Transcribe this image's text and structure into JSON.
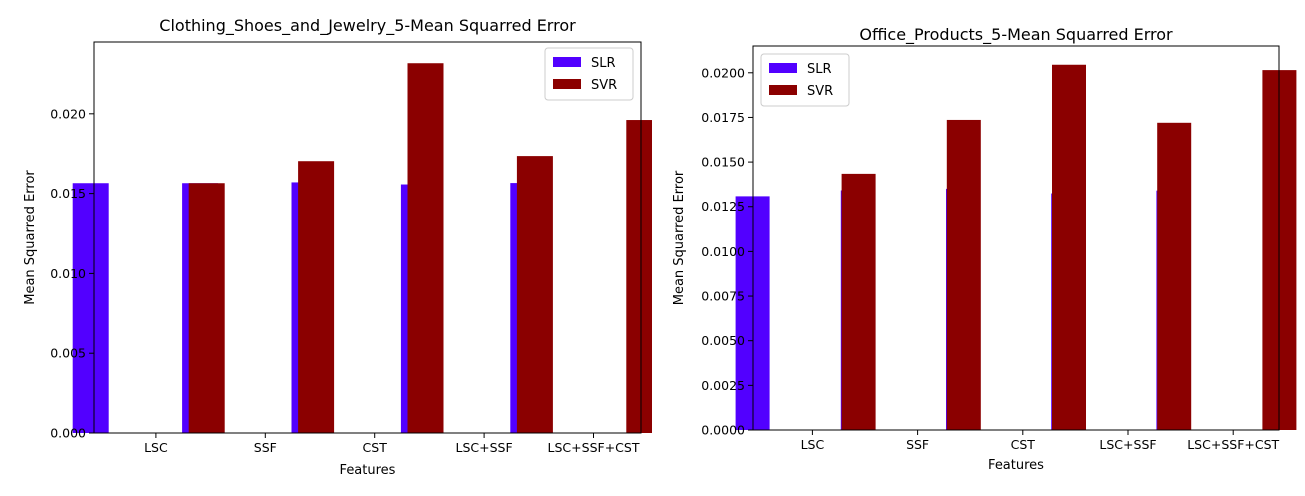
{
  "chart_data": [
    {
      "type": "bar",
      "title": "Clothing_Shoes_and_Jewelry_5-Mean Squarred Error",
      "xlabel": "Features",
      "ylabel": "Mean Squarred Error",
      "categories": [
        "LSC",
        "SSF",
        "CST",
        "LSC+SSF",
        "LSC+SSF+CST"
      ],
      "series": [
        {
          "name": "SLR",
          "values": [
            0.01565,
            0.01565,
            0.0157,
            0.01557,
            0.01566
          ],
          "color": "#5200ff"
        },
        {
          "name": "SVR",
          "values": [
            0.01565,
            0.01703,
            0.02317,
            0.01735,
            0.01961
          ],
          "color": "#8b0000"
        }
      ],
      "ylim": [
        0,
        0.0245
      ],
      "yticks": [
        0.0,
        0.005,
        0.01,
        0.015,
        0.02
      ],
      "ytick_labels": [
        "0.000",
        "0.005",
        "0.010",
        "0.015",
        "0.020"
      ],
      "legend_position": "top-right",
      "grid": false
    },
    {
      "type": "bar",
      "title": "Office_Products_5-Mean Squarred Error",
      "xlabel": "Features",
      "ylabel": "Mean Squarred Error",
      "categories": [
        "LSC",
        "SSF",
        "CST",
        "LSC+SSF",
        "LSC+SSF+CST"
      ],
      "series": [
        {
          "name": "SLR",
          "values": [
            0.01308,
            0.01341,
            0.0135,
            0.01324,
            0.0134
          ],
          "color": "#5200ff"
        },
        {
          "name": "SVR",
          "values": [
            0.01434,
            0.01736,
            0.02045,
            0.0172,
            0.02015
          ],
          "color": "#8b0000"
        }
      ],
      "ylim": [
        0,
        0.0215
      ],
      "yticks": [
        0.0,
        0.0025,
        0.005,
        0.0075,
        0.01,
        0.0125,
        0.015,
        0.0175,
        0.02
      ],
      "ytick_labels": [
        "0.0000",
        "0.0025",
        "0.0050",
        "0.0075",
        "0.0100",
        "0.0125",
        "0.0150",
        "0.0175",
        "0.0200"
      ],
      "legend_position": "top-left",
      "grid": false
    }
  ]
}
